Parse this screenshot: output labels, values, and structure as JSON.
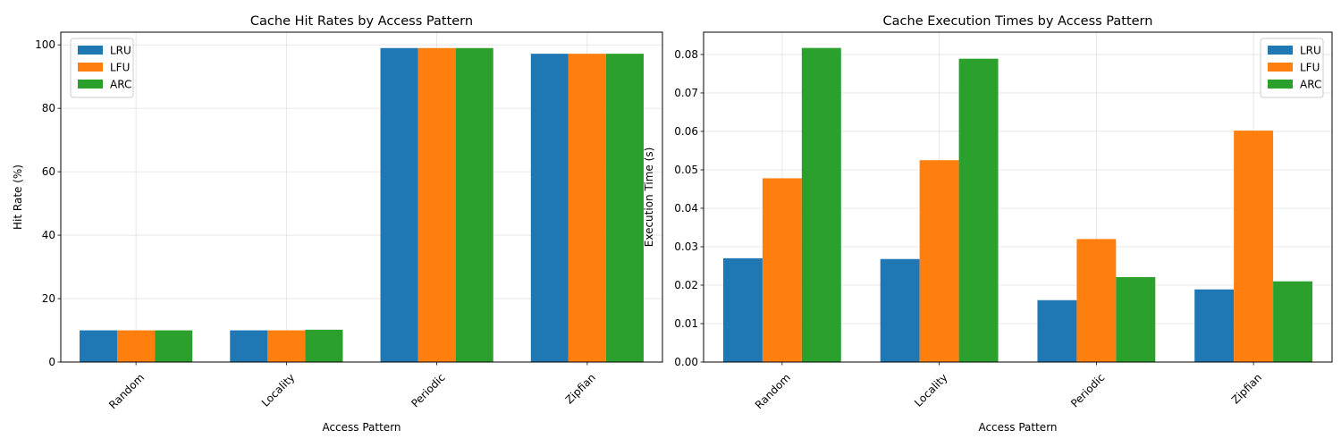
{
  "chart_data": [
    {
      "type": "bar",
      "title": "Cache Hit Rates by Access Pattern",
      "xlabel": "Access Pattern",
      "ylabel": "Hit Rate (%)",
      "categories": [
        "Random",
        "Locality",
        "Periodic",
        "Zipfian"
      ],
      "series": [
        {
          "name": "LRU",
          "color": "#1f77b4",
          "values": [
            10.0,
            10.0,
            99.0,
            97.2
          ]
        },
        {
          "name": "LFU",
          "color": "#ff7f0e",
          "values": [
            10.0,
            10.0,
            99.0,
            97.2
          ]
        },
        {
          "name": "ARC",
          "color": "#2ca02c",
          "values": [
            10.0,
            10.2,
            99.0,
            97.2
          ]
        }
      ],
      "ylim": [
        0,
        104
      ],
      "yticks": [
        0,
        20,
        40,
        60,
        80,
        100
      ],
      "ytick_labels": [
        "0",
        "20",
        "40",
        "60",
        "80",
        "100"
      ],
      "grid": true,
      "legend_position": "upper-left"
    },
    {
      "type": "bar",
      "title": "Cache Execution Times by Access Pattern",
      "xlabel": "Access Pattern",
      "ylabel": "Execution Time (s)",
      "categories": [
        "Random",
        "Locality",
        "Periodic",
        "Zipfian"
      ],
      "series": [
        {
          "name": "LRU",
          "color": "#1f77b4",
          "values": [
            0.027,
            0.0268,
            0.0161,
            0.0189
          ]
        },
        {
          "name": "LFU",
          "color": "#ff7f0e",
          "values": [
            0.0478,
            0.0525,
            0.032,
            0.0602
          ]
        },
        {
          "name": "ARC",
          "color": "#2ca02c",
          "values": [
            0.0817,
            0.0789,
            0.0221,
            0.021
          ]
        }
      ],
      "ylim": [
        0,
        0.0858
      ],
      "yticks": [
        0,
        0.01,
        0.02,
        0.03,
        0.04,
        0.05,
        0.06,
        0.07,
        0.08
      ],
      "ytick_labels": [
        "0.00",
        "0.01",
        "0.02",
        "0.03",
        "0.04",
        "0.05",
        "0.06",
        "0.07",
        "0.08"
      ],
      "grid": true,
      "legend_position": "upper-right"
    }
  ]
}
